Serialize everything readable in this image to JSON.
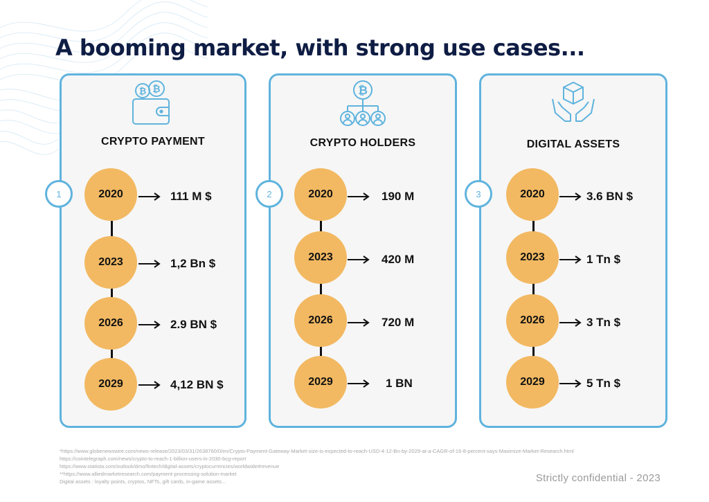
{
  "title": "A booming market, with strong use cases...",
  "cards": [
    {
      "number": "1",
      "icon": "bitcoin-wallet-icon",
      "title": "CRYPTO PAYMENT",
      "items": [
        {
          "year": "2020",
          "value": "111 M $"
        },
        {
          "year": "2023",
          "value": "1,2 Bn $"
        },
        {
          "year": "2026",
          "value": "2.9 BN $"
        },
        {
          "year": "2029",
          "value": "4,12 BN $"
        }
      ]
    },
    {
      "number": "2",
      "icon": "bitcoin-holders-network-icon",
      "title": "CRYPTO HOLDERS",
      "items": [
        {
          "year": "2020",
          "value": "190 M"
        },
        {
          "year": "2023",
          "value": "420 M"
        },
        {
          "year": "2026",
          "value": "720 M"
        },
        {
          "year": "2029",
          "value": "1 BN"
        }
      ]
    },
    {
      "number": "3",
      "icon": "hands-holding-cube-icon",
      "title": "DIGITAL ASSETS",
      "items": [
        {
          "year": "2020",
          "value": "3.6 BN $"
        },
        {
          "year": "2023",
          "value": "1 Tn $"
        },
        {
          "year": "2026",
          "value": "3 Tn $"
        },
        {
          "year": "2029",
          "value": "5 Tn $"
        }
      ]
    }
  ],
  "footnotes": [
    "*https://www.globenewswire.com/news-release/2023/03/31/2638760/0/en/Crypto-Payment-Gateway-Market-size-is-expected-to-reach-USD-4-12-Bn-by-2029-at-a-CAGR-of-16-8-percent-says-Maximize-Market-Research.html",
    "https://cointelegraph.com/news/crypto-to-reach-1-billion-users-in-2030-bcg-report",
    "https://www.statista.com/outlook/dmo/fintech/digital-assets/cryptocurrencies/worldwide#revenue",
    "**https://www.alliedmarketresearch.com/payment-processing-solution-market",
    "Digital assets : loyalty points, cryptos, NFTs, gift cards, in-game assets..."
  ],
  "confidential": "Strictly confidential - 2023",
  "colors": {
    "accent_blue": "#5fb3dd",
    "circle_orange": "#f2b962",
    "title_navy": "#0f1d44"
  }
}
